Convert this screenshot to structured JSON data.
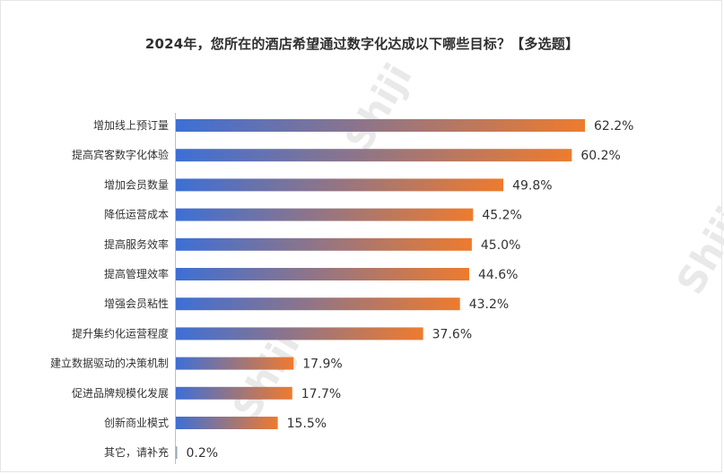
{
  "title": "2024年，您所在的酒店希望通过数字化达成以下哪些目标？【多选题】",
  "watermark": "Shiji",
  "colors": {
    "bar_start": "#3d6fd6",
    "bar_end": "#ee7b2e",
    "text": "#333333"
  },
  "chart_data": {
    "type": "bar",
    "orientation": "horizontal",
    "title": "2024年，您所在的酒店希望通过数字化达成以下哪些目标？【多选题】",
    "xlabel": "",
    "ylabel": "",
    "value_suffix": "%",
    "grid": false,
    "legend": "none",
    "xlim": [
      0,
      62.2
    ],
    "categories": [
      "增加线上预订量",
      "提高宾客数字化体验",
      "增加会员数量",
      "降低运营成本",
      "提高服务效率",
      "提高管理效率",
      "增强会员粘性",
      "提升集约化运营程度",
      "建立数据驱动的决策机制",
      "促进品牌规模化发展",
      "创新商业模式",
      "其它，请补充"
    ],
    "values": [
      62.2,
      60.2,
      49.8,
      45.2,
      45.0,
      44.6,
      43.2,
      37.6,
      17.9,
      17.7,
      15.5,
      0.2
    ],
    "labels": [
      "62.2%",
      "60.2%",
      "49.8%",
      "45.2%",
      "45.0%",
      "44.6%",
      "43.2%",
      "37.6%",
      "17.9%",
      "17.7%",
      "15.5%",
      "0.2%"
    ]
  }
}
